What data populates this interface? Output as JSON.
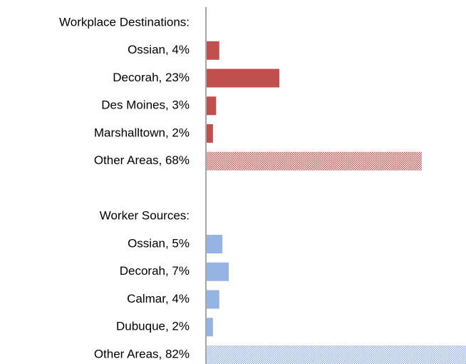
{
  "chart_data": {
    "type": "bar",
    "categories": [
      "Workplace Destinations:",
      "Ossian, 4%",
      "Decorah, 23%",
      "Des Moines, 3%",
      "Marshalltown, 2%",
      "Other Areas, 68%",
      null,
      "Worker Sources:",
      "Ossian, 5%",
      "Decorah, 7%",
      "Calmar, 4%",
      "Dubuque, 2%",
      "Other Areas, 82%"
    ],
    "values": [
      null,
      4,
      23,
      3,
      2,
      68,
      null,
      null,
      5,
      7,
      4,
      2,
      82
    ],
    "colors": [
      null,
      "#c0504d",
      "#c0504d",
      "#c0504d",
      "#c0504d",
      "#c0504d",
      null,
      null,
      "#95b3e3",
      "#95b3e3",
      "#95b3e3",
      "#95b3e3",
      "#95b3e3"
    ],
    "hatch": [
      false,
      false,
      false,
      false,
      false,
      true,
      false,
      false,
      false,
      false,
      false,
      false,
      true
    ]
  }
}
